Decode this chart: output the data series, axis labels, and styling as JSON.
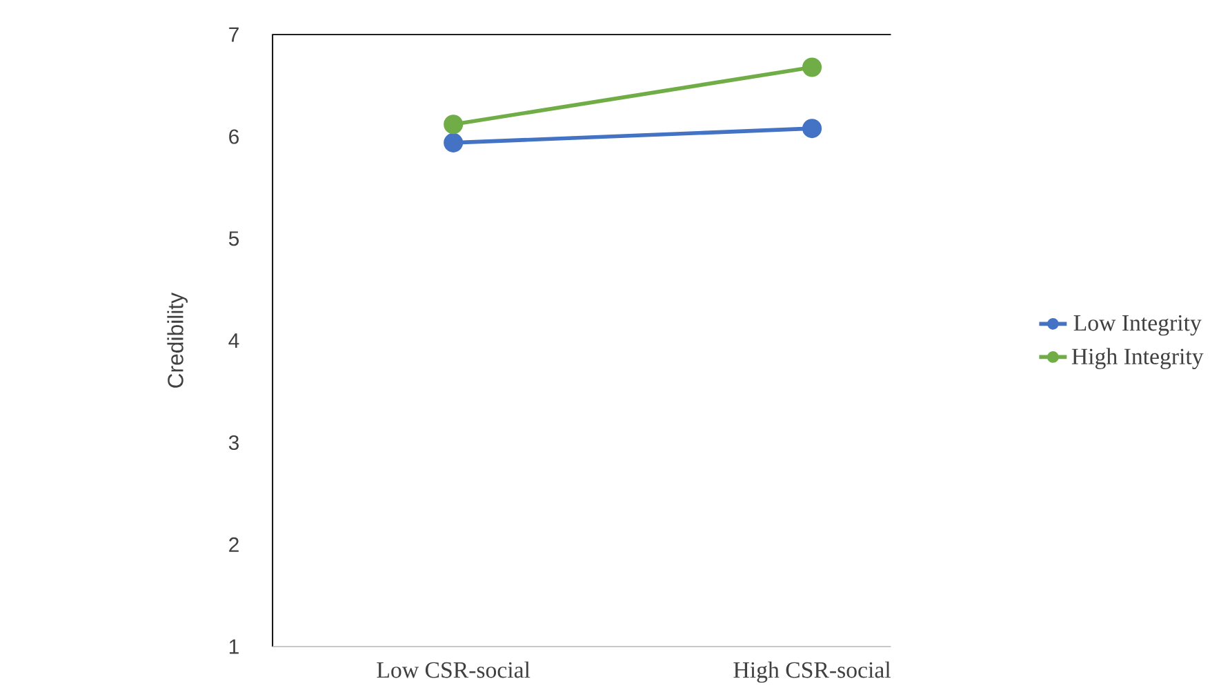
{
  "chart_data": {
    "type": "line",
    "ylabel": "Credibility",
    "categories": [
      "Low CSR-social",
      "High CSR-social"
    ],
    "series": [
      {
        "name": "Low Integrity",
        "color": "#4472c4",
        "values": [
          5.94,
          6.08
        ]
      },
      {
        "name": "High Integrity",
        "color": "#70ad47",
        "values": [
          6.12,
          6.68
        ]
      }
    ],
    "ylim": [
      1,
      7
    ],
    "yticks": [
      1,
      2,
      3,
      4,
      5,
      6,
      7
    ],
    "marker": "circle",
    "legend": "right",
    "grid": false
  }
}
